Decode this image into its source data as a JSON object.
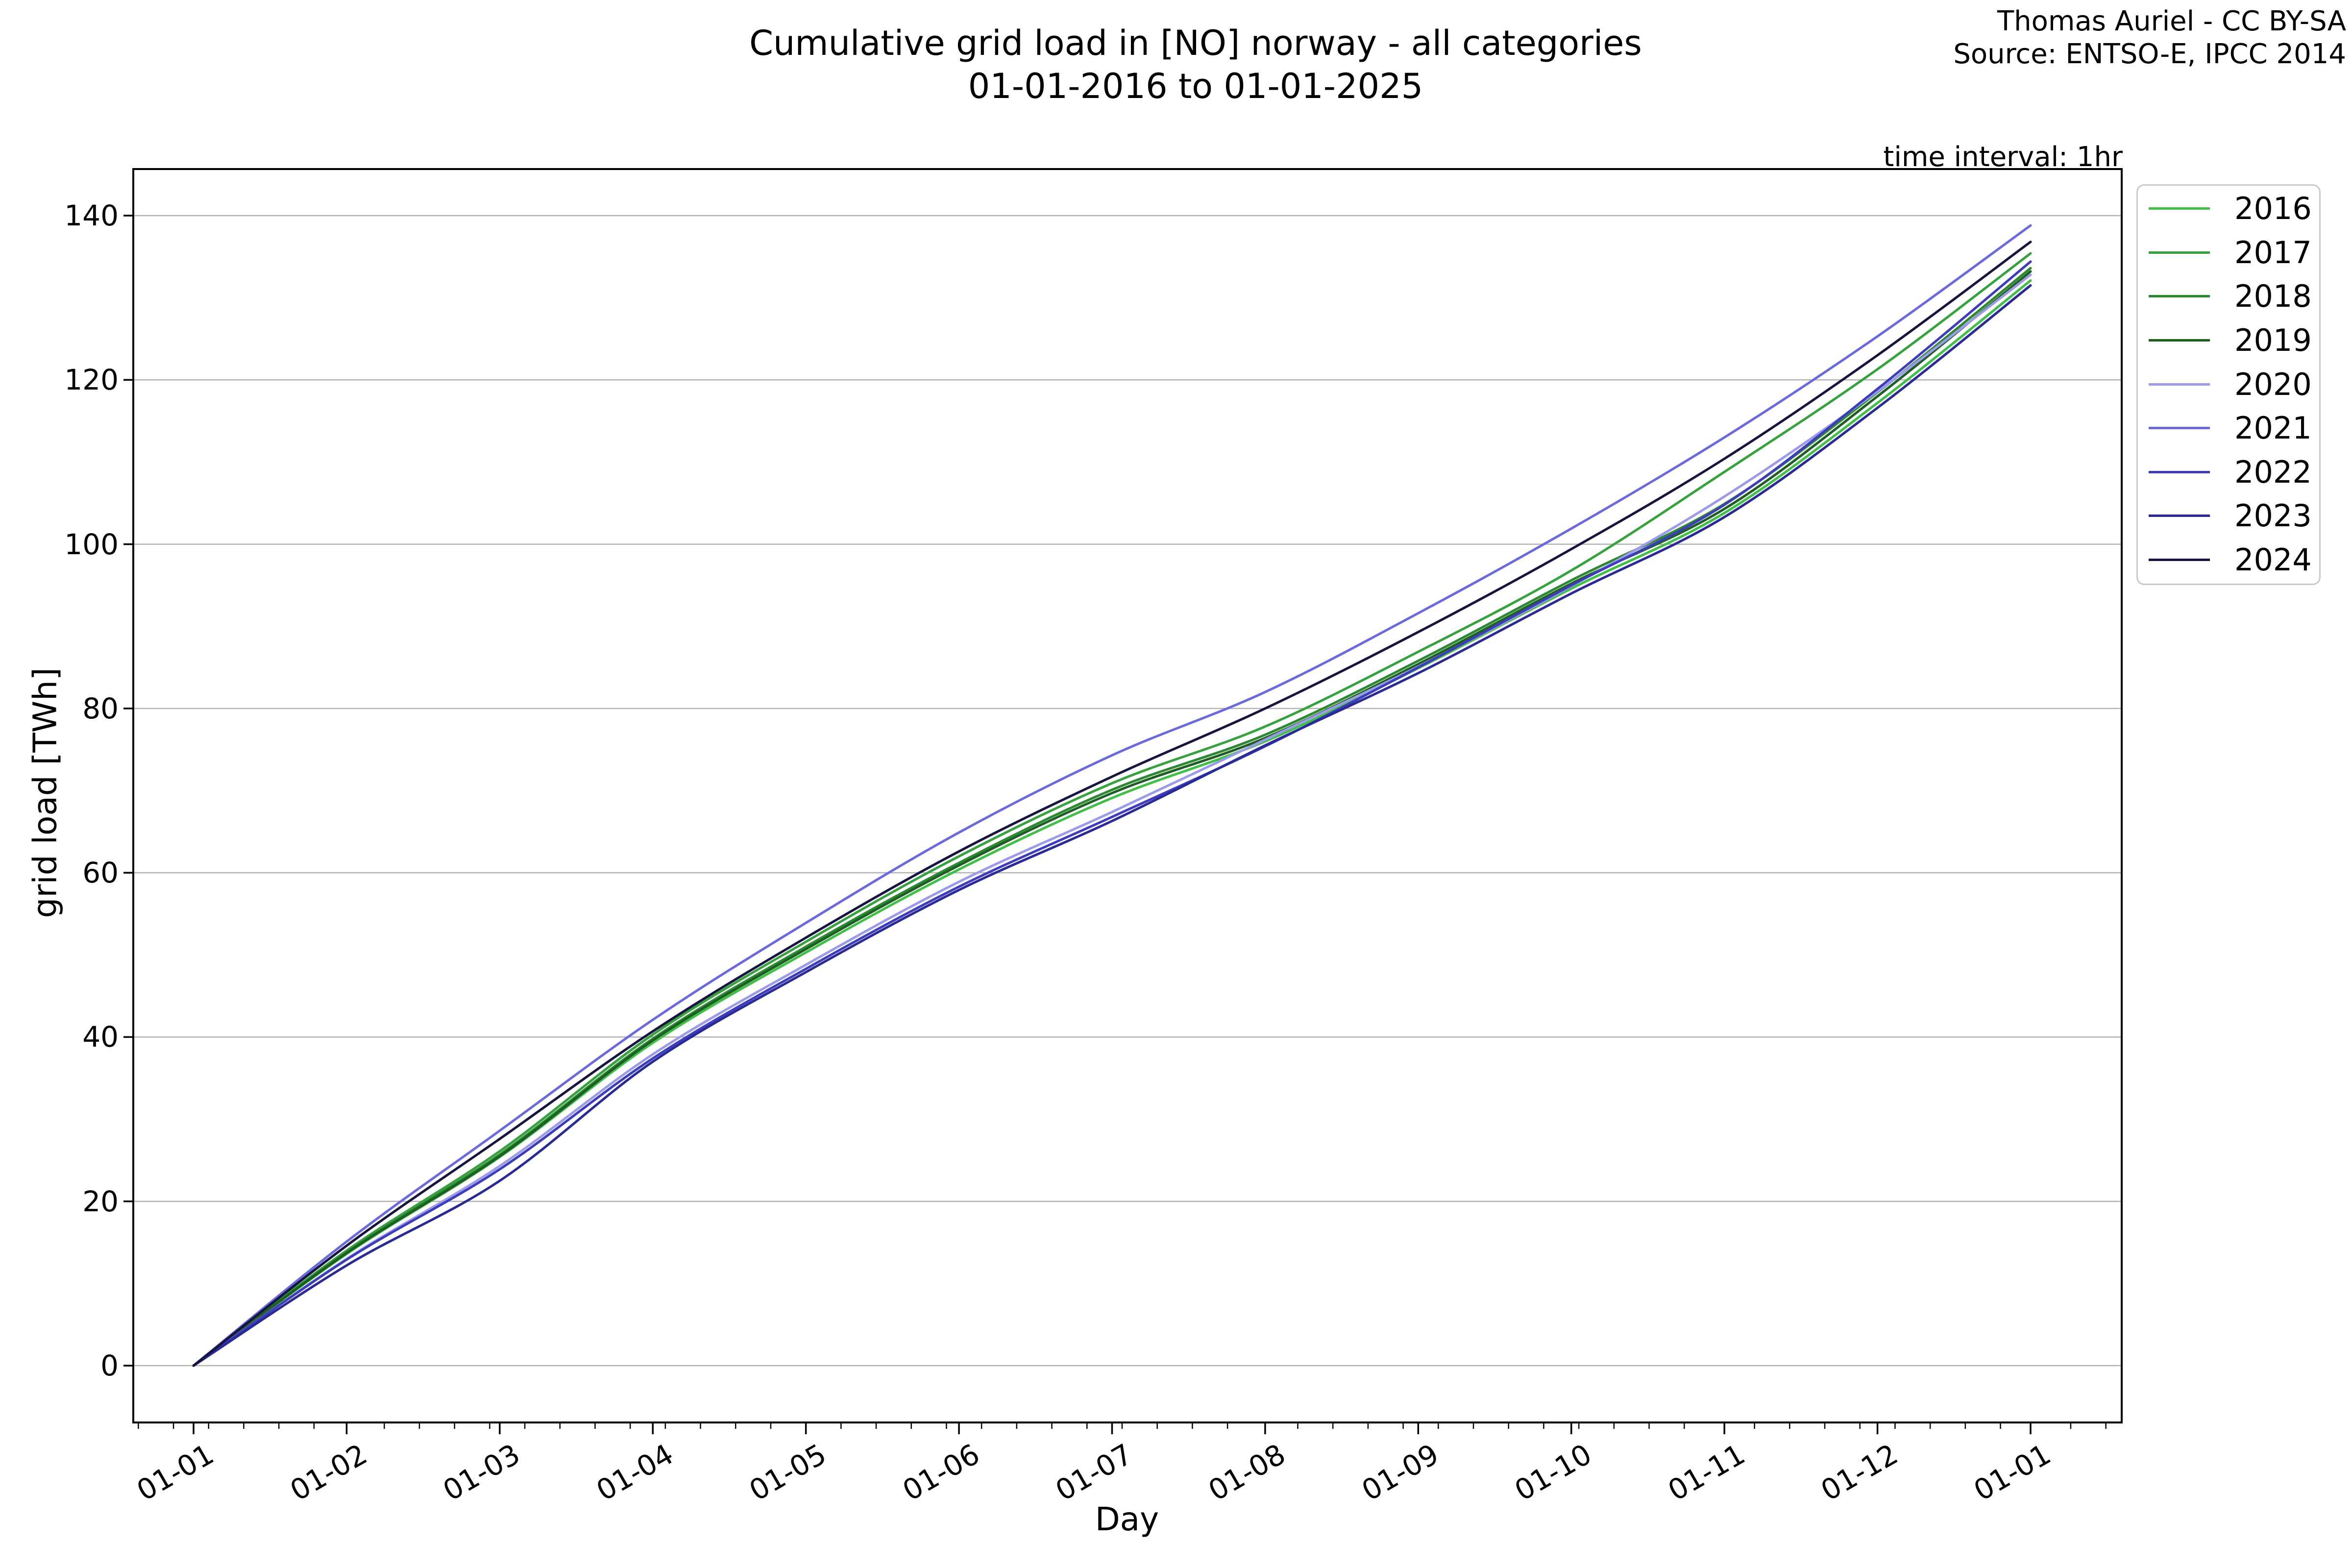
{
  "title": {
    "line1": "Cumulative grid load in [NO] norway - all categories",
    "line2": "01-01-2016 to 01-01-2025"
  },
  "attribution": {
    "line1": "Thomas Auriel - CC BY-SA",
    "line2": "Source: ENTSO-E, IPCC 2014"
  },
  "annotation": {
    "time_interval": "time interval: 1hr"
  },
  "chart_data": {
    "type": "line",
    "title": "Cumulative grid load in [NO] norway - all categories 01-01-2016 to 01-01-2025",
    "xlabel": "Day",
    "ylabel": "grid load [TWh]",
    "x_tick_labels": [
      "01-01",
      "01-02",
      "01-03",
      "01-04",
      "01-05",
      "01-06",
      "01-07",
      "01-08",
      "01-09",
      "01-10",
      "01-11",
      "01-12",
      "01-01"
    ],
    "x_tick_format": "DD-MM (month starts)",
    "x_minor_ticks": "weekly",
    "y_ticks": [
      0,
      20,
      40,
      60,
      80,
      100,
      120,
      140
    ],
    "y_tick_labels": [
      "0",
      "20",
      "40",
      "60",
      "80",
      "100",
      "120",
      "140"
    ],
    "ylim": [
      -7,
      146
    ],
    "grid": "horizontal gridlines at y ticks",
    "legend_position": "outside upper right",
    "grid_color": "#b3b3b3",
    "series": [
      {
        "name": "2016",
        "color": "#3fbf46",
        "monthly_cumulative_twh": [
          0,
          13.6,
          25.4,
          39.3,
          50.3,
          60.4,
          69.1,
          76.0,
          84.9,
          94.6,
          103.8,
          117.2,
          132.1
        ]
      },
      {
        "name": "2017",
        "color": "#36a23d",
        "monthly_cumulative_twh": [
          0,
          14.0,
          26.1,
          40.3,
          51.6,
          62.0,
          70.9,
          77.8,
          86.9,
          96.8,
          108.8,
          121.3,
          135.4
        ]
      },
      {
        "name": "2018",
        "color": "#2b8932",
        "monthly_cumulative_twh": [
          0,
          13.8,
          25.7,
          39.8,
          51.0,
          61.2,
          70.1,
          76.8,
          85.8,
          95.6,
          104.9,
          118.5,
          133.6
        ]
      },
      {
        "name": "2019",
        "color": "#1d5f23",
        "monthly_cumulative_twh": [
          0,
          13.7,
          25.5,
          39.6,
          50.7,
          60.9,
          69.7,
          76.4,
          85.4,
          95.2,
          104.3,
          118.0,
          133.2
        ]
      },
      {
        "name": "2020",
        "color": "#9b9bea",
        "monthly_cumulative_twh": [
          0,
          13.0,
          24.3,
          37.9,
          48.8,
          58.9,
          67.4,
          76.2,
          85.1,
          94.9,
          105.8,
          118.6,
          132.8
        ]
      },
      {
        "name": "2021",
        "color": "#6a6ade",
        "monthly_cumulative_twh": [
          0,
          15.1,
          28.6,
          42.1,
          53.9,
          64.9,
          74.3,
          82.0,
          91.6,
          101.9,
          113.0,
          125.3,
          138.8
        ]
      },
      {
        "name": "2022",
        "color": "#3c3cbd",
        "monthly_cumulative_twh": [
          0,
          12.9,
          23.9,
          37.4,
          48.3,
          58.3,
          66.8,
          75.4,
          85.0,
          95.0,
          104.8,
          118.9,
          134.4
        ]
      },
      {
        "name": "2023",
        "color": "#2a2a96",
        "monthly_cumulative_twh": [
          0,
          12.2,
          22.5,
          37.0,
          47.9,
          57.9,
          66.3,
          75.5,
          84.3,
          94.0,
          103.3,
          116.6,
          131.5
        ]
      },
      {
        "name": "2024",
        "color": "#15153f",
        "monthly_cumulative_twh": [
          0,
          14.6,
          27.6,
          40.7,
          52.1,
          62.6,
          71.7,
          80.0,
          89.3,
          99.4,
          110.4,
          123.0,
          136.8
        ]
      }
    ]
  }
}
